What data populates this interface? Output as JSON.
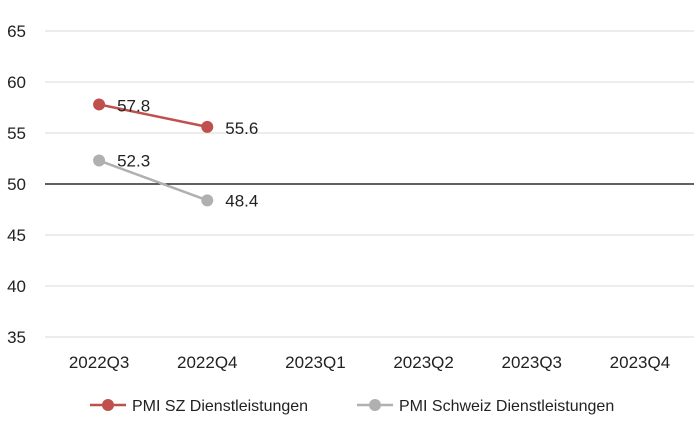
{
  "chart_data": {
    "type": "line",
    "categories": [
      "2022Q3",
      "2022Q4",
      "2023Q1",
      "2023Q2",
      "2023Q3",
      "2023Q4"
    ],
    "series": [
      {
        "name": "PMI SZ Dienstleistungen",
        "color": "#c0504d",
        "values": [
          57.8,
          55.6,
          null,
          null,
          null,
          null
        ],
        "labels": [
          "57.8",
          "55.6"
        ]
      },
      {
        "name": "PMI Schweiz Dienstleistungen",
        "color": "#b0b0b0",
        "values": [
          52.3,
          48.4,
          null,
          null,
          null,
          null
        ],
        "labels": [
          "52.3",
          "48.4"
        ]
      }
    ],
    "ylim": [
      35,
      65
    ],
    "yticks": [
      35,
      40,
      45,
      50,
      55,
      60,
      65
    ],
    "reference_line": 50,
    "grid": true,
    "legend_position": "bottom",
    "title": "",
    "xlabel": "",
    "ylabel": ""
  }
}
